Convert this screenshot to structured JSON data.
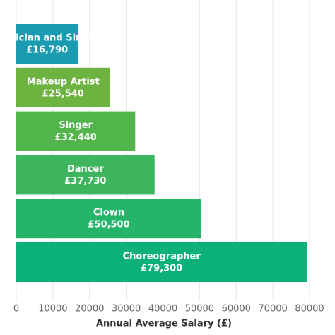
{
  "chart_data": {
    "type": "barh",
    "x_label": "Annual Average Salary (£)",
    "categories": [
      "Musician and Singer",
      "Makeup Artist",
      "Singer",
      "Dancer",
      "Clown",
      "Choreographer"
    ],
    "values": [
      16790,
      25540,
      32440,
      37730,
      50500,
      79300
    ],
    "value_labels": [
      "£16,790",
      "£25,540",
      "£32,440",
      "£37,730",
      "£50,500",
      "£79,300"
    ],
    "colors": [
      "#1a9bb0",
      "#6db33f",
      "#52b54b",
      "#3db55e",
      "#24b46a",
      "#0bb07b"
    ],
    "xlim": [
      0,
      80000
    ],
    "xticks": [
      0,
      10000,
      20000,
      30000,
      40000,
      50000,
      60000,
      70000,
      80000
    ],
    "grid": true
  }
}
